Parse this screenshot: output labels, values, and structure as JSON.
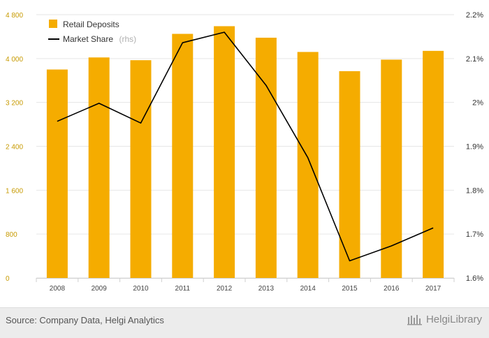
{
  "chart_data": {
    "type": "bar+line",
    "categories": [
      "2008",
      "2009",
      "2010",
      "2011",
      "2012",
      "2013",
      "2014",
      "2015",
      "2016",
      "2017"
    ],
    "series": [
      {
        "name": "Retail Deposits",
        "type": "bar",
        "axis": "left",
        "color": "#f5ac00",
        "values": [
          3800,
          4020,
          3970,
          4450,
          4590,
          4380,
          4120,
          3770,
          3980,
          4140
        ]
      },
      {
        "name": "Market Share",
        "type": "line",
        "axis": "right",
        "color": "#000000",
        "values": [
          1.957,
          1.998,
          1.953,
          2.136,
          2.16,
          2.039,
          1.874,
          1.639,
          1.673,
          1.714
        ]
      }
    ],
    "y_left": {
      "ylim": [
        0,
        4800
      ],
      "ticks": [
        0,
        800,
        1600,
        2400,
        3200,
        4000,
        4800
      ],
      "tick_labels": [
        "0",
        "800",
        "1 600",
        "2 400",
        "3 200",
        "4 000",
        "4 800"
      ]
    },
    "y_right": {
      "ylim": [
        1.6,
        2.2
      ],
      "ticks": [
        1.6,
        1.7,
        1.8,
        1.9,
        2.0,
        2.1,
        2.2
      ],
      "tick_labels": [
        "1.6%",
        "1.7%",
        "1.8%",
        "1.9%",
        "2%",
        "2.1%",
        "2.2%"
      ]
    },
    "legend": {
      "position": "top-left",
      "items": [
        {
          "label": "Retail Deposits",
          "note": ""
        },
        {
          "label": "Market Share",
          "note": "(rhs)"
        }
      ]
    },
    "grid": true
  },
  "footer": {
    "source": "Source: Company Data, Helgi Analytics",
    "brand": "HelgiLibrary"
  }
}
